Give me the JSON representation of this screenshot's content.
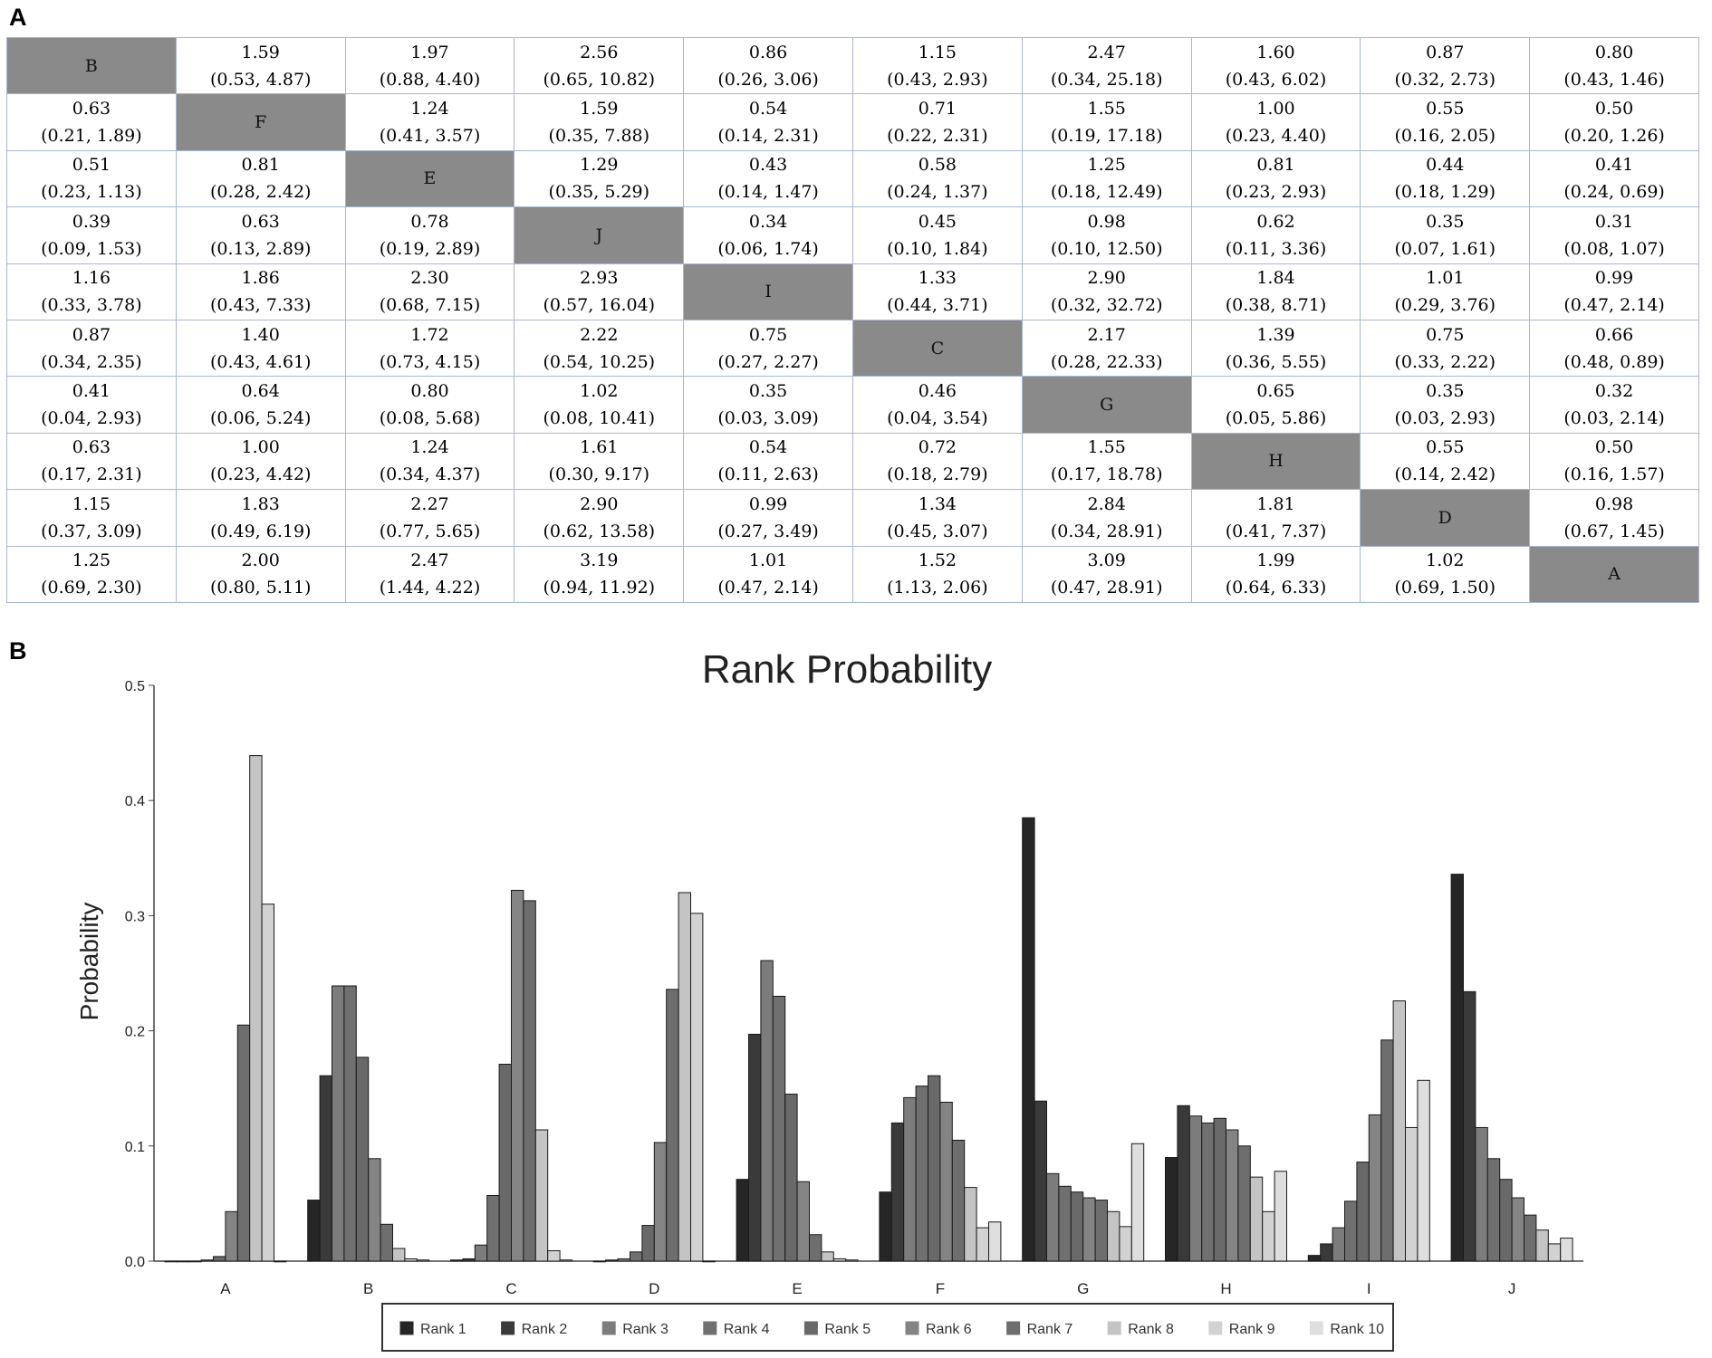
{
  "panels": {
    "a": "A",
    "b": "B"
  },
  "league_table": {
    "treatments": [
      "B",
      "F",
      "E",
      "J",
      "I",
      "C",
      "G",
      "H",
      "D",
      "A"
    ],
    "rows": [
      [
        "B",
        "1.59\n(0.53, 4.87)",
        "1.97\n(0.88, 4.40)",
        "2.56\n(0.65, 10.82)",
        "0.86\n(0.26, 3.06)",
        "1.15\n(0.43, 2.93)",
        "2.47\n(0.34, 25.18)",
        "1.60\n(0.43, 6.02)",
        "0.87\n(0.32, 2.73)",
        "0.80\n(0.43, 1.46)"
      ],
      [
        "0.63\n(0.21, 1.89)",
        "F",
        "1.24\n(0.41, 3.57)",
        "1.59\n(0.35, 7.88)",
        "0.54\n(0.14, 2.31)",
        "0.71\n(0.22, 2.31)",
        "1.55\n(0.19, 17.18)",
        "1.00\n(0.23, 4.40)",
        "0.55\n(0.16, 2.05)",
        "0.50\n(0.20, 1.26)"
      ],
      [
        "0.51\n(0.23, 1.13)",
        "0.81\n(0.28, 2.42)",
        "E",
        "1.29\n(0.35, 5.29)",
        "0.43\n(0.14, 1.47)",
        "0.58\n(0.24, 1.37)",
        "1.25\n(0.18, 12.49)",
        "0.81\n(0.23, 2.93)",
        "0.44\n(0.18, 1.29)",
        "0.41\n(0.24, 0.69)"
      ],
      [
        "0.39\n(0.09, 1.53)",
        "0.63\n(0.13, 2.89)",
        "0.78\n(0.19, 2.89)",
        "J",
        "0.34\n(0.06, 1.74)",
        "0.45\n(0.10, 1.84)",
        "0.98\n(0.10, 12.50)",
        "0.62\n(0.11, 3.36)",
        "0.35\n(0.07, 1.61)",
        "0.31\n(0.08, 1.07)"
      ],
      [
        "1.16\n(0.33, 3.78)",
        "1.86\n(0.43, 7.33)",
        "2.30\n(0.68, 7.15)",
        "2.93\n(0.57, 16.04)",
        "I",
        "1.33\n(0.44, 3.71)",
        "2.90\n(0.32, 32.72)",
        "1.84\n(0.38, 8.71)",
        "1.01\n(0.29, 3.76)",
        "0.99\n(0.47, 2.14)"
      ],
      [
        "0.87\n(0.34, 2.35)",
        "1.40\n(0.43, 4.61)",
        "1.72\n(0.73, 4.15)",
        "2.22\n(0.54, 10.25)",
        "0.75\n(0.27, 2.27)",
        "C",
        "2.17\n(0.28, 22.33)",
        "1.39\n(0.36, 5.55)",
        "0.75\n(0.33, 2.22)",
        "0.66\n(0.48, 0.89)"
      ],
      [
        "0.41\n(0.04, 2.93)",
        "0.64\n(0.06, 5.24)",
        "0.80\n(0.08, 5.68)",
        "1.02\n(0.08, 10.41)",
        "0.35\n(0.03, 3.09)",
        "0.46\n(0.04, 3.54)",
        "G",
        "0.65\n(0.05, 5.86)",
        "0.35\n(0.03, 2.93)",
        "0.32\n(0.03, 2.14)"
      ],
      [
        "0.63\n(0.17, 2.31)",
        "1.00\n(0.23, 4.42)",
        "1.24\n(0.34, 4.37)",
        "1.61\n(0.30, 9.17)",
        "0.54\n(0.11, 2.63)",
        "0.72\n(0.18, 2.79)",
        "1.55\n(0.17, 18.78)",
        "H",
        "0.55\n(0.14, 2.42)",
        "0.50\n(0.16, 1.57)"
      ],
      [
        "1.15\n(0.37, 3.09)",
        "1.83\n(0.49, 6.19)",
        "2.27\n(0.77, 5.65)",
        "2.90\n(0.62, 13.58)",
        "0.99\n(0.27, 3.49)",
        "1.34\n(0.45, 3.07)",
        "2.84\n(0.34, 28.91)",
        "1.81\n(0.41, 7.37)",
        "D",
        "0.98\n(0.67, 1.45)"
      ],
      [
        "1.25\n(0.69, 2.30)",
        "2.00\n(0.80, 5.11)",
        "2.47\n(1.44, 4.22)",
        "3.19\n(0.94, 11.92)",
        "1.01\n(0.47, 2.14)",
        "1.52\n(1.13, 2.06)",
        "3.09\n(0.47, 28.91)",
        "1.99\n(0.64, 6.33)",
        "1.02\n(0.69, 1.50)",
        "A"
      ]
    ]
  },
  "chart_data": {
    "type": "bar",
    "title": "Rank Probability",
    "xlabel": "",
    "ylabel": "Probability",
    "ylim": [
      0,
      0.5
    ],
    "yticks": [
      "0.0",
      "0.1",
      "0.2",
      "0.3",
      "0.4",
      "0.5"
    ],
    "categories": [
      "A",
      "B",
      "C",
      "D",
      "E",
      "F",
      "G",
      "H",
      "I",
      "J"
    ],
    "legend_position": "bottom",
    "series": [
      {
        "name": "Rank 1",
        "color": "#262626",
        "values": [
          0.0,
          0.053,
          0.001,
          0.0,
          0.071,
          0.06,
          0.385,
          0.09,
          0.005,
          0.336
        ]
      },
      {
        "name": "Rank 2",
        "color": "#3a3a3a",
        "values": [
          0.0,
          0.161,
          0.002,
          0.001,
          0.197,
          0.12,
          0.139,
          0.135,
          0.015,
          0.234
        ]
      },
      {
        "name": "Rank 3",
        "color": "#7c7c7c",
        "values": [
          0.0,
          0.239,
          0.014,
          0.002,
          0.261,
          0.142,
          0.076,
          0.126,
          0.029,
          0.116
        ]
      },
      {
        "name": "Rank 4",
        "color": "#707070",
        "values": [
          0.001,
          0.239,
          0.057,
          0.008,
          0.23,
          0.152,
          0.065,
          0.12,
          0.052,
          0.089
        ]
      },
      {
        "name": "Rank 5",
        "color": "#696969",
        "values": [
          0.004,
          0.177,
          0.171,
          0.031,
          0.145,
          0.161,
          0.06,
          0.124,
          0.086,
          0.071
        ]
      },
      {
        "name": "Rank 6",
        "color": "#848484",
        "values": [
          0.043,
          0.089,
          0.322,
          0.103,
          0.069,
          0.138,
          0.055,
          0.114,
          0.127,
          0.055
        ]
      },
      {
        "name": "Rank 7",
        "color": "#6e6e6e",
        "values": [
          0.205,
          0.032,
          0.313,
          0.236,
          0.023,
          0.105,
          0.053,
          0.1,
          0.192,
          0.04
        ]
      },
      {
        "name": "Rank 8",
        "color": "#c4c4c4",
        "values": [
          0.439,
          0.011,
          0.114,
          0.32,
          0.008,
          0.064,
          0.043,
          0.073,
          0.226,
          0.027
        ]
      },
      {
        "name": "Rank 9",
        "color": "#d2d2d2",
        "values": [
          0.31,
          0.002,
          0.009,
          0.302,
          0.002,
          0.029,
          0.03,
          0.043,
          0.116,
          0.015
        ]
      },
      {
        "name": "Rank 10",
        "color": "#dedede",
        "values": [
          0.0,
          0.001,
          0.001,
          0.0,
          0.001,
          0.034,
          0.102,
          0.078,
          0.157,
          0.02
        ]
      }
    ]
  }
}
